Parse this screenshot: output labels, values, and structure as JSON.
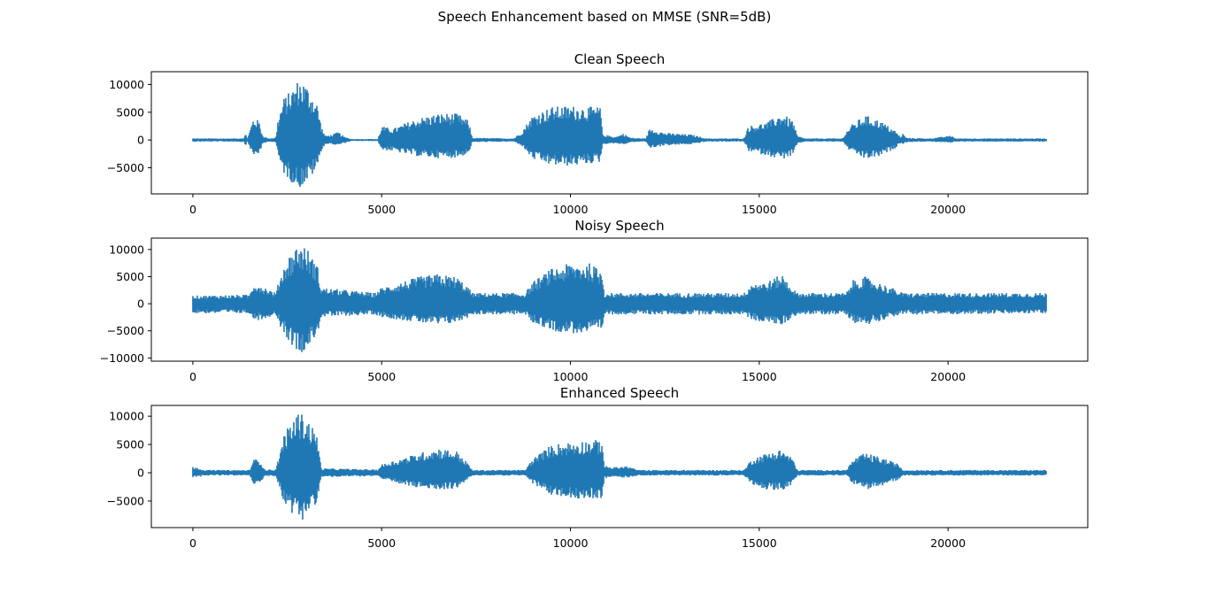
{
  "figure": {
    "suptitle": "Speech Enhancement based on MMSE (SNR=5dB)"
  },
  "style": {
    "line_color": "#1f77b4",
    "axes_edge_color": "#000000",
    "background": "#ffffff"
  },
  "chart_data": [
    {
      "type": "line",
      "title": "Clean Speech",
      "xlabel": "",
      "ylabel": "",
      "x_ticks": [
        0,
        5000,
        10000,
        15000,
        20000
      ],
      "y_ticks": [
        -5000,
        0,
        5000,
        10000
      ],
      "xlim": [
        -1100,
        23700
      ],
      "ylim": [
        -9700,
        12300
      ],
      "n_samples": 22600,
      "grid": false,
      "series": [
        {
          "color": "#1f77b4",
          "envelope_knots": [
            [
              0,
              300,
              -300
            ],
            [
              1200,
              300,
              -300
            ],
            [
              1300,
              400,
              -400
            ],
            [
              1350,
              300,
              -300
            ],
            [
              1400,
              1200,
              -1000
            ],
            [
              1450,
              300,
              -300
            ],
            [
              1500,
              1500,
              -1200
            ],
            [
              1600,
              4000,
              -3000
            ],
            [
              1750,
              3500,
              -2500
            ],
            [
              1850,
              800,
              -800
            ],
            [
              2000,
              300,
              -300
            ],
            [
              2200,
              500,
              -400
            ],
            [
              2250,
              3500,
              -3000
            ],
            [
              2400,
              7500,
              -6000
            ],
            [
              2600,
              9000,
              -7500
            ],
            [
              2800,
              11000,
              -8800
            ],
            [
              2950,
              10500,
              -8000
            ],
            [
              3100,
              9000,
              -7000
            ],
            [
              3300,
              6500,
              -5000
            ],
            [
              3400,
              2500,
              -2000
            ],
            [
              3500,
              800,
              -800
            ],
            [
              3700,
              1000,
              -800
            ],
            [
              3850,
              1500,
              -1000
            ],
            [
              4000,
              600,
              -600
            ],
            [
              4200,
              200,
              -200
            ],
            [
              4900,
              200,
              -200
            ],
            [
              5000,
              2500,
              -1800
            ],
            [
              5300,
              2000,
              -2000
            ],
            [
              5600,
              3000,
              -2500
            ],
            [
              6000,
              4000,
              -3000
            ],
            [
              6500,
              4800,
              -3300
            ],
            [
              7000,
              4800,
              -3200
            ],
            [
              7300,
              3500,
              -2500
            ],
            [
              7400,
              400,
              -400
            ],
            [
              8500,
              300,
              -300
            ],
            [
              8700,
              1500,
              -1000
            ],
            [
              9000,
              4500,
              -3500
            ],
            [
              9500,
              6000,
              -4600
            ],
            [
              10000,
              6200,
              -4700
            ],
            [
              10500,
              6000,
              -4300
            ],
            [
              10800,
              6000,
              -4000
            ],
            [
              10850,
              1000,
              -800
            ],
            [
              11200,
              600,
              -600
            ],
            [
              11400,
              1200,
              -900
            ],
            [
              11600,
              400,
              -400
            ],
            [
              12000,
              300,
              -300
            ],
            [
              12100,
              2200,
              -1500
            ],
            [
              12500,
              1300,
              -1000
            ],
            [
              13200,
              1000,
              -800
            ],
            [
              13600,
              300,
              -300
            ],
            [
              14600,
              300,
              -300
            ],
            [
              14700,
              2500,
              -2000
            ],
            [
              15200,
              3200,
              -2800
            ],
            [
              15600,
              4800,
              -3500
            ],
            [
              15900,
              3500,
              -2800
            ],
            [
              16000,
              800,
              -800
            ],
            [
              16200,
              300,
              -300
            ],
            [
              17200,
              300,
              -300
            ],
            [
              17400,
              2500,
              -2000
            ],
            [
              17800,
              4500,
              -3500
            ],
            [
              18200,
              3500,
              -3000
            ],
            [
              18600,
              1700,
              -1500
            ],
            [
              18750,
              500,
              -500
            ],
            [
              18800,
              1200,
              -800
            ],
            [
              18900,
              400,
              -400
            ],
            [
              19500,
              300,
              -300
            ],
            [
              20100,
              800,
              -500
            ],
            [
              20200,
              300,
              -300
            ],
            [
              22600,
              300,
              -300
            ]
          ]
        }
      ]
    },
    {
      "type": "line",
      "title": "Noisy Speech",
      "xlabel": "",
      "ylabel": "",
      "x_ticks": [
        0,
        5000,
        10000,
        15000,
        20000
      ],
      "y_ticks": [
        -10000,
        -5000,
        0,
        5000,
        10000
      ],
      "xlim": [
        -1100,
        23700
      ],
      "ylim": [
        -10600,
        12100
      ],
      "n_samples": 22600,
      "grid": false,
      "series": [
        {
          "color": "#1f77b4",
          "envelope_knots": [
            [
              0,
              1500,
              -1800
            ],
            [
              1500,
              1700,
              -1800
            ],
            [
              1600,
              4000,
              -3000
            ],
            [
              1800,
              3500,
              -3000
            ],
            [
              2200,
              2000,
              -2000
            ],
            [
              2300,
              5000,
              -4000
            ],
            [
              2500,
              8500,
              -6500
            ],
            [
              2800,
              11200,
              -9200
            ],
            [
              3000,
              10500,
              -8500
            ],
            [
              3300,
              7000,
              -5500
            ],
            [
              3400,
              3000,
              -2500
            ],
            [
              4800,
              2000,
              -2000
            ],
            [
              5000,
              3000,
              -2500
            ],
            [
              5500,
              4000,
              -3000
            ],
            [
              6000,
              5000,
              -3500
            ],
            [
              6500,
              5500,
              -4000
            ],
            [
              7000,
              5000,
              -3500
            ],
            [
              7300,
              3000,
              -2500
            ],
            [
              7400,
              2000,
              -2000
            ],
            [
              8800,
              2000,
              -2000
            ],
            [
              9000,
              4000,
              -3500
            ],
            [
              9500,
              6500,
              -5000
            ],
            [
              10000,
              7500,
              -5500
            ],
            [
              10500,
              7500,
              -5500
            ],
            [
              10850,
              6000,
              -5000
            ],
            [
              10900,
              2000,
              -2000
            ],
            [
              14600,
              2000,
              -2000
            ],
            [
              14800,
              4000,
              -3000
            ],
            [
              15200,
              4000,
              -3500
            ],
            [
              15600,
              5500,
              -4000
            ],
            [
              16000,
              2000,
              -2000
            ],
            [
              17300,
              2000,
              -2000
            ],
            [
              17500,
              4500,
              -3500
            ],
            [
              17800,
              5000,
              -4000
            ],
            [
              18500,
              3000,
              -2500
            ],
            [
              18800,
              2000,
              -2000
            ],
            [
              22600,
              2000,
              -1800
            ]
          ]
        }
      ]
    },
    {
      "type": "line",
      "title": "Enhanced Speech",
      "xlabel": "",
      "ylabel": "",
      "x_ticks": [
        0,
        5000,
        10000,
        15000,
        20000
      ],
      "y_ticks": [
        -5000,
        0,
        5000,
        10000
      ],
      "xlim": [
        -1100,
        23700
      ],
      "ylim": [
        -9700,
        11900
      ],
      "n_samples": 22600,
      "grid": false,
      "series": [
        {
          "color": "#1f77b4",
          "envelope_knots": [
            [
              0,
              1200,
              -900
            ],
            [
              200,
              800,
              -700
            ],
            [
              300,
              500,
              -500
            ],
            [
              1500,
              500,
              -500
            ],
            [
              1600,
              2500,
              -2000
            ],
            [
              1800,
              2200,
              -1800
            ],
            [
              1900,
              600,
              -600
            ],
            [
              2200,
              600,
              -600
            ],
            [
              2400,
              6500,
              -5000
            ],
            [
              2600,
              9000,
              -7000
            ],
            [
              2800,
              10800,
              -8600
            ],
            [
              3000,
              10000,
              -8000
            ],
            [
              3300,
              6500,
              -5000
            ],
            [
              3400,
              800,
              -800
            ],
            [
              4900,
              600,
              -600
            ],
            [
              5000,
              1500,
              -1200
            ],
            [
              5500,
              2500,
              -2000
            ],
            [
              6000,
              3500,
              -2800
            ],
            [
              6500,
              4400,
              -3000
            ],
            [
              7000,
              3800,
              -2800
            ],
            [
              7300,
              1500,
              -1200
            ],
            [
              7400,
              500,
              -500
            ],
            [
              8800,
              500,
              -500
            ],
            [
              9000,
              2500,
              -2000
            ],
            [
              9500,
              5000,
              -4000
            ],
            [
              10000,
              5500,
              -4500
            ],
            [
              10500,
              5800,
              -4600
            ],
            [
              10850,
              5800,
              -4500
            ],
            [
              10900,
              1200,
              -1000
            ],
            [
              11200,
              1000,
              -800
            ],
            [
              11500,
              1200,
              -900
            ],
            [
              11800,
              500,
              -500
            ],
            [
              14600,
              500,
              -500
            ],
            [
              14800,
              2500,
              -2000
            ],
            [
              15200,
              3500,
              -3000
            ],
            [
              15600,
              4200,
              -3200
            ],
            [
              15900,
              2500,
              -2000
            ],
            [
              16000,
              500,
              -500
            ],
            [
              17300,
              500,
              -500
            ],
            [
              17500,
              2500,
              -2000
            ],
            [
              17800,
              3500,
              -3000
            ],
            [
              18200,
              2800,
              -2500
            ],
            [
              18700,
              1500,
              -1200
            ],
            [
              18800,
              500,
              -500
            ],
            [
              22600,
              500,
              -500
            ]
          ]
        }
      ]
    }
  ]
}
